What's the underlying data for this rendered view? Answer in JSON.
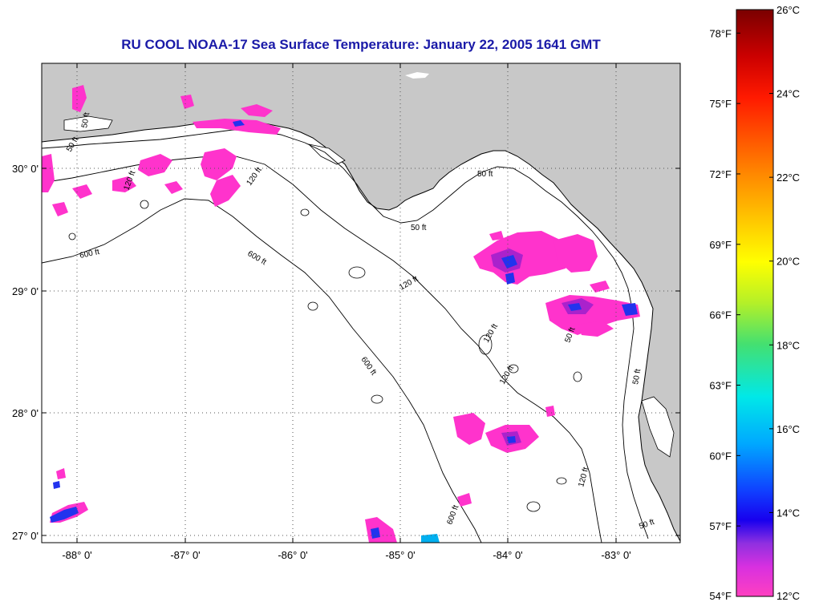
{
  "map": {
    "title": "RU COOL  NOAA-17  Sea Surface Temperature:  January 22, 2005 1641 GMT",
    "lon_ticks": [
      "-88° 0'",
      "-87° 0'",
      "-86° 0'",
      "-85° 0'",
      "-84° 0'",
      "-83° 0'"
    ],
    "lat_ticks": [
      "30° 0'",
      "29° 0'",
      "28° 0'",
      "27° 0'"
    ],
    "contour_labels": {
      "ft50": "50 ft",
      "ft120": "120 ft",
      "ft600": "600 ft"
    },
    "colors": {
      "land": "#c8c8c8",
      "ocean": "#ffffff",
      "sst_cold": "#ff33cc",
      "sst_cold2": "#aa22cc",
      "sst_cool": "#2233ee",
      "title": "#1a1aa8"
    }
  },
  "colorbar": {
    "celsius_labels": [
      "26°C",
      "24°C",
      "22°C",
      "20°C",
      "18°C",
      "16°C",
      "14°C",
      "12°C"
    ],
    "fahrenheit_labels": [
      "78°F",
      "75°F",
      "72°F",
      "69°F",
      "66°F",
      "63°F",
      "60°F",
      "57°F",
      "54°F"
    ],
    "celsius_range": [
      12,
      26
    ],
    "fahrenheit_range": [
      54,
      79
    ]
  }
}
